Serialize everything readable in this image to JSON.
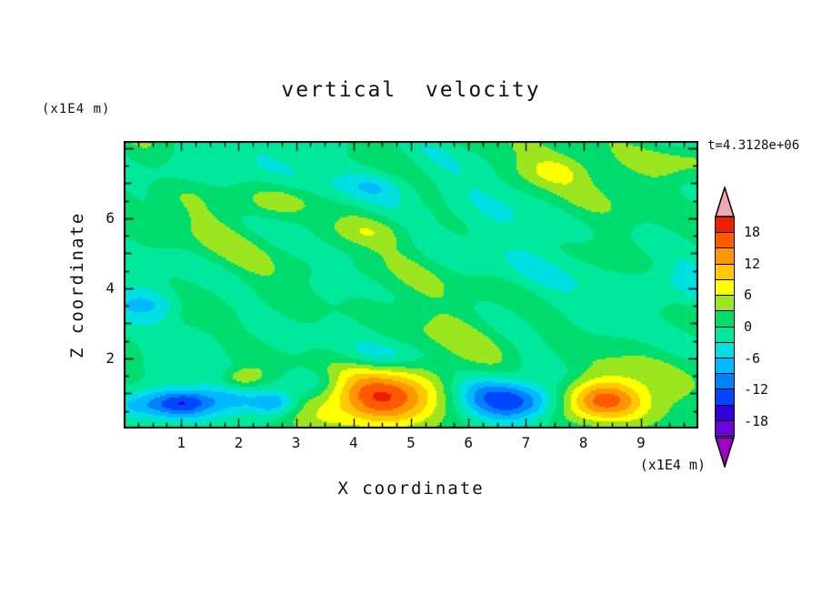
{
  "chart_data": {
    "type": "heatmap",
    "title": "vertical  velocity",
    "xlabel": "X coordinate",
    "ylabel": "Z coordinate",
    "x_unit_label": "(x1E4 m)",
    "y_unit_label": "(x1E4 m)",
    "time_label": "t=4.3128e+06",
    "xlim": [
      0,
      10
    ],
    "ylim": [
      0,
      8.2
    ],
    "x_ticks": [
      1,
      2,
      3,
      4,
      5,
      6,
      7,
      8,
      9
    ],
    "y_ticks": [
      2,
      4,
      6
    ],
    "grid": false,
    "legend_position": "right-colorbar",
    "contour_min": -21,
    "contour_max": 21,
    "contour_step": 3,
    "colorbar_labels": [
      18,
      12,
      6,
      0,
      -6,
      -12,
      -18
    ],
    "palette": {
      "min": -21,
      "step": 3,
      "colors": [
        "#A000C8",
        "#6E00DC",
        "#3200DC",
        "#0046FF",
        "#0082FF",
        "#00B9FF",
        "#00E0E0",
        "#00E89C",
        "#00DC6E",
        "#9BE61E",
        "#FFFF00",
        "#FFC800",
        "#FF9600",
        "#FF5A00",
        "#F01E00",
        "#F0A8B4"
      ]
    },
    "field": {
      "description": "vertical velocity w(x,z): near-zero mottled background (+/-3) over most of the domain; strong cells near lower boundary z~0.8: updraft ~+20 at x=4.5, updraft ~+17 at x=8.3, downdraft ~-17 at x=6.3-6.9, shallow downdrafts x=0-3",
      "waves": [
        {
          "a": 1.5,
          "kx": 0.7,
          "kz": 1.1,
          "p": 0.4
        },
        {
          "a": 1.3,
          "kx": 1.8,
          "kz": 0.6,
          "p": 2.0
        },
        {
          "a": 1.1,
          "kx": 3.0,
          "kz": 1.9,
          "p": 4.2
        },
        {
          "a": 1.0,
          "kx": 2.2,
          "kz": 3.0,
          "p": 1.1
        },
        {
          "a": 0.8,
          "kx": 4.5,
          "kz": 2.5,
          "p": 5.3
        },
        {
          "a": 0.7,
          "kx": 1.1,
          "kz": 4.2,
          "p": 3.0
        }
      ],
      "blobs": [
        {
          "x": 4.5,
          "z": 0.85,
          "a": 15,
          "rx": 0.7,
          "rz": 0.55
        },
        {
          "x": 4.5,
          "z": 1.05,
          "a": 5,
          "rx": 1.25,
          "rz": 0.8
        },
        {
          "x": 8.35,
          "z": 0.8,
          "a": 13,
          "rx": 0.5,
          "rz": 0.42
        },
        {
          "x": 8.3,
          "z": 0.9,
          "a": 4,
          "rx": 0.9,
          "rz": 0.6
        },
        {
          "x": 6.3,
          "z": 0.95,
          "a": -8,
          "rx": 0.45,
          "rz": 0.45
        },
        {
          "x": 6.85,
          "z": 0.8,
          "a": -10,
          "rx": 0.4,
          "rz": 0.38
        },
        {
          "x": 6.55,
          "z": 1.05,
          "a": -3,
          "rx": 0.85,
          "rz": 0.55
        },
        {
          "x": 0.35,
          "z": 0.68,
          "a": -6,
          "rx": 0.45,
          "rz": 0.3
        },
        {
          "x": 1.05,
          "z": 0.72,
          "a": -9,
          "rx": 0.33,
          "rz": 0.26
        },
        {
          "x": 1.8,
          "z": 0.8,
          "a": -5,
          "rx": 0.45,
          "rz": 0.28
        },
        {
          "x": 2.65,
          "z": 0.72,
          "a": -9,
          "rx": 0.28,
          "rz": 0.26
        },
        {
          "x": 1.2,
          "z": 0.75,
          "a": -3.5,
          "rx": 1.2,
          "rz": 0.45
        },
        {
          "x": 2.05,
          "z": 1.45,
          "a": 6.5,
          "rx": 0.26,
          "rz": 0.2
        },
        {
          "x": 3.2,
          "z": 1.3,
          "a": -4,
          "rx": 0.4,
          "rz": 0.28
        },
        {
          "x": 4.5,
          "z": 2.1,
          "a": -3.5,
          "rx": 0.5,
          "rz": 0.25
        },
        {
          "x": 7.4,
          "z": 0.75,
          "a": -4,
          "rx": 0.35,
          "rz": 0.3
        },
        {
          "x": 2.7,
          "z": 6.5,
          "a": 4.5,
          "rx": 0.5,
          "rz": 0.35
        },
        {
          "x": 4.15,
          "z": 5.6,
          "a": 4,
          "rx": 0.55,
          "rz": 0.3
        },
        {
          "x": 4.4,
          "z": 6.95,
          "a": -4,
          "rx": 0.5,
          "rz": 0.3
        },
        {
          "x": 0.9,
          "z": 7.3,
          "a": -4,
          "rx": 0.5,
          "rz": 0.35
        },
        {
          "x": 9.55,
          "z": 7.6,
          "a": 4.5,
          "rx": 0.6,
          "rz": 0.4
        },
        {
          "x": 7.5,
          "z": 7.35,
          "a": 4,
          "rx": 0.5,
          "rz": 0.3
        },
        {
          "x": 9.3,
          "z": 4.0,
          "a": -3.5,
          "rx": 0.45,
          "rz": 0.4
        },
        {
          "x": 0.45,
          "z": 3.6,
          "a": -3.5,
          "rx": 0.4,
          "rz": 0.35
        },
        {
          "x": 1.0,
          "z": 3.1,
          "a": 3.5,
          "rx": 0.45,
          "rz": 0.3
        }
      ]
    }
  }
}
